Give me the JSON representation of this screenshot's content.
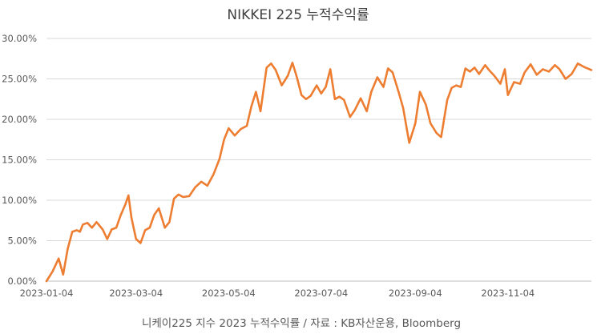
{
  "chart_data": {
    "type": "line",
    "title": "NIKKEI 225 누적수익률",
    "caption": "니케이225 지수 2023 누적수익률 / 자료 : KB자산운용, Bloomberg",
    "colors": {
      "series": "#ED7D31",
      "grid": "#d9d9d9",
      "text": "#595959"
    },
    "grid": true,
    "y_ticks": [
      "0.00%",
      "5.00%",
      "10.00%",
      "15.00%",
      "20.00%",
      "25.00%",
      "30.00%"
    ],
    "x_ticks": [
      "2023-01-04",
      "2023-03-04",
      "2023-05-04",
      "2023-07-04",
      "2023-09-04",
      "2023-11-04"
    ],
    "xlim": [
      "2023-01-04",
      "2023-12-29"
    ],
    "ylim": [
      0,
      30
    ],
    "series": [
      {
        "x": [
          "2023-01-04",
          "2023-01-08",
          "2023-01-12",
          "2023-01-15",
          "2023-01-18",
          "2023-01-21",
          "2023-01-24",
          "2023-01-26",
          "2023-01-28",
          "2023-01-31",
          "2023-02-03",
          "2023-02-06",
          "2023-02-10",
          "2023-02-13",
          "2023-02-16",
          "2023-02-19",
          "2023-02-22",
          "2023-02-25",
          "2023-02-27",
          "2023-03-01",
          "2023-03-04",
          "2023-03-07",
          "2023-03-10",
          "2023-03-13",
          "2023-03-16",
          "2023-03-19",
          "2023-03-23",
          "2023-03-26",
          "2023-03-29",
          "2023-04-01",
          "2023-04-04",
          "2023-04-08",
          "2023-04-12",
          "2023-04-16",
          "2023-04-20",
          "2023-04-24",
          "2023-04-28",
          "2023-05-01",
          "2023-05-04",
          "2023-05-08",
          "2023-05-12",
          "2023-05-16",
          "2023-05-19",
          "2023-05-22",
          "2023-05-25",
          "2023-05-29",
          "2023-06-01",
          "2023-06-04",
          "2023-06-08",
          "2023-06-12",
          "2023-06-15",
          "2023-06-18",
          "2023-06-21",
          "2023-06-24",
          "2023-06-27",
          "2023-07-01",
          "2023-07-04",
          "2023-07-07",
          "2023-07-10",
          "2023-07-13",
          "2023-07-16",
          "2023-07-19",
          "2023-07-23",
          "2023-07-26",
          "2023-07-30",
          "2023-08-03",
          "2023-08-06",
          "2023-08-10",
          "2023-08-14",
          "2023-08-17",
          "2023-08-20",
          "2023-08-24",
          "2023-08-27",
          "2023-08-31",
          "2023-09-04",
          "2023-09-07",
          "2023-09-11",
          "2023-09-14",
          "2023-09-18",
          "2023-09-21",
          "2023-09-25",
          "2023-09-28",
          "2023-10-01",
          "2023-10-04",
          "2023-10-07",
          "2023-10-10",
          "2023-10-13",
          "2023-10-16",
          "2023-10-20",
          "2023-10-23",
          "2023-10-26",
          "2023-10-30",
          "2023-11-02",
          "2023-11-04",
          "2023-11-08",
          "2023-11-12",
          "2023-11-15",
          "2023-11-19",
          "2023-11-23",
          "2023-11-27",
          "2023-12-01",
          "2023-12-05",
          "2023-12-08",
          "2023-12-12",
          "2023-12-16",
          "2023-12-20",
          "2023-12-24",
          "2023-12-29"
        ],
        "y": [
          0.0,
          1.2,
          2.8,
          0.8,
          4.0,
          6.1,
          6.3,
          6.1,
          7.0,
          7.2,
          6.6,
          7.3,
          6.4,
          5.2,
          6.4,
          6.6,
          8.2,
          9.5,
          10.6,
          7.8,
          5.2,
          4.7,
          6.3,
          6.6,
          8.2,
          9.0,
          6.6,
          7.3,
          10.2,
          10.7,
          10.4,
          10.5,
          11.6,
          12.3,
          11.8,
          13.2,
          15.1,
          17.5,
          18.9,
          18.0,
          18.8,
          19.2,
          21.6,
          23.4,
          21.0,
          26.4,
          26.9,
          26.1,
          24.2,
          25.4,
          27.0,
          25.2,
          23.0,
          22.5,
          22.9,
          24.2,
          23.2,
          24.0,
          26.2,
          22.5,
          22.8,
          22.4,
          20.3,
          21.1,
          22.6,
          21.0,
          23.4,
          25.2,
          24.0,
          26.3,
          25.8,
          23.4,
          21.4,
          17.1,
          19.5,
          23.4,
          21.8,
          19.5,
          18.3,
          17.8,
          22.4,
          23.9,
          24.2,
          24.0,
          26.3,
          25.9,
          26.4,
          25.6,
          26.7,
          26.0,
          25.4,
          24.4,
          26.2,
          23.0,
          24.6,
          24.4,
          25.8,
          26.8,
          25.5,
          26.2,
          25.9,
          26.7,
          26.2,
          25.0,
          25.6,
          26.9,
          26.5,
          26.1
        ]
      }
    ]
  }
}
